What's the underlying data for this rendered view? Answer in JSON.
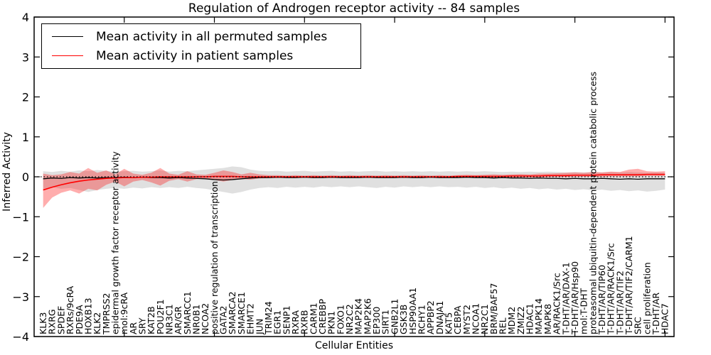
{
  "title": "Regulation of Androgen receptor activity -- 84 samples",
  "colors": {
    "permuted_line": "#000000",
    "patient_line": "#ff0000",
    "permuted_band": "#999999",
    "patient_band": "#ff0000",
    "background": "#ffffff"
  },
  "chart_data": {
    "type": "line",
    "title": "Regulation of Androgen receptor activity -- 84 samples",
    "xlabel": "Cellular Entities",
    "ylabel": "Inferred Activity",
    "ylim": [
      -4,
      4
    ],
    "yticks": [
      -4,
      -3,
      -2,
      -1,
      0,
      1,
      2,
      3,
      4
    ],
    "xticks": [
      10,
      20,
      30,
      40,
      50,
      60,
      70
    ],
    "grid": false,
    "zero_line": true,
    "legend_position": "upper left",
    "categories": [
      "KLK3",
      "RXRG",
      "SPDEF",
      "RXRs/9cRA",
      "PDE9A",
      "HOXB13",
      "KLK2",
      "TMPRSS2",
      "epidermal growth factor receptor activity",
      "mol:9cRA",
      "AR",
      "SRY",
      "KAT2B",
      "POU2F1",
      "NR3C1",
      "AR/GR",
      "SMARCC1",
      "NR0B1",
      "NCOA2",
      "positive regulation of transcription",
      "GATA2",
      "SMARCA2",
      "SMARCE1",
      "EHMT2",
      "JUN",
      "TRIM24",
      "EGR1",
      "SENP1",
      "RXRA",
      "RXRB",
      "CARM1",
      "CREBBP",
      "PKN1",
      "FOXO1",
      "NR2C2",
      "MAP2K4",
      "MAP2K6",
      "EP300",
      "SIRT1",
      "GNB2L1",
      "GSK3B",
      "HSP90AA1",
      "RCHY1",
      "APPBP2",
      "DNAJA1",
      "KAT5",
      "CEBPA",
      "MYST2",
      "NCOA1",
      "NR2C1",
      "BRM/BAF57",
      "REL",
      "MDM2",
      "ZMIZ2",
      "HDAC1",
      "MAPK14",
      "MAPK8",
      "AR/RACK1/Src",
      "T-DHT/AR/DAX-1",
      "T-DHT/AR/Hsp90",
      "mol:T-DHT",
      "proteasomal ubiquitin-dependent protein catabolic process",
      "T-DHT/AR/TIP60",
      "T-DHT/AR/RACK1/Src",
      "T-DHT/AR/TIF2",
      "T-DHT/AR/TIF2/CARM1",
      "SRC",
      "cell proliferation",
      "T-DHT/AR",
      "HDAC7"
    ],
    "series": [
      {
        "name": "Mean activity in all permuted samples",
        "name_id": "permuted-mean",
        "color": "#000000",
        "width": 1.3,
        "values": [
          -0.05,
          -0.03,
          -0.04,
          -0.02,
          -0.03,
          -0.02,
          -0.03,
          -0.02,
          -0.02,
          -0.01,
          -0.02,
          -0.01,
          -0.02,
          -0.02,
          -0.03,
          -0.02,
          -0.03,
          -0.04,
          -0.05,
          -0.07,
          -0.08,
          -0.07,
          -0.05,
          -0.03,
          -0.02,
          -0.02,
          -0.01,
          -0.02,
          -0.02,
          -0.01,
          -0.02,
          -0.02,
          -0.01,
          -0.02,
          -0.02,
          -0.02,
          -0.01,
          -0.02,
          -0.02,
          -0.02,
          -0.01,
          -0.02,
          -0.02,
          -0.01,
          -0.02,
          -0.02,
          -0.02,
          -0.01,
          -0.02,
          -0.02,
          -0.03,
          -0.02,
          -0.03,
          -0.03,
          -0.04,
          -0.03,
          -0.04,
          -0.04,
          -0.05,
          -0.04,
          -0.05,
          -0.05,
          -0.04,
          -0.05,
          -0.06,
          -0.05,
          -0.06,
          -0.05,
          -0.05,
          -0.05
        ]
      },
      {
        "name": "Mean activity in patient samples",
        "name_id": "patient-mean",
        "color": "#ff0000",
        "width": 1.6,
        "values": [
          -0.33,
          -0.26,
          -0.2,
          -0.15,
          -0.11,
          -0.08,
          -0.06,
          -0.04,
          -0.03,
          -0.02,
          -0.02,
          -0.01,
          -0.01,
          0,
          0,
          0,
          0,
          0,
          0,
          0.01,
          0.01,
          0.01,
          0,
          0,
          0,
          0,
          0,
          0,
          0,
          0,
          0,
          0,
          0,
          0,
          0,
          0,
          0,
          0,
          0,
          0,
          0,
          0,
          0,
          0,
          0,
          0,
          0.01,
          0.01,
          0.01,
          0.01,
          0.01,
          0.01,
          0.02,
          0.02,
          0.02,
          0.02,
          0.03,
          0.03,
          0.03,
          0.04,
          0.04,
          0.04,
          0.05,
          0.05,
          0.05,
          0.05,
          0.05,
          0.06,
          0.06,
          0.06
        ]
      }
    ],
    "bands": [
      {
        "name_id": "permuted-std",
        "color": "#999999",
        "opacity": 0.3,
        "upper": [
          0.14,
          0.12,
          0.15,
          0.13,
          0.16,
          0.14,
          0.17,
          0.15,
          0.13,
          0.14,
          0.15,
          0.13,
          0.14,
          0.16,
          0.13,
          0.15,
          0.14,
          0.16,
          0.18,
          0.2,
          0.22,
          0.26,
          0.24,
          0.18,
          0.15,
          0.14,
          0.15,
          0.13,
          0.14,
          0.15,
          0.13,
          0.14,
          0.15,
          0.13,
          0.14,
          0.13,
          0.14,
          0.15,
          0.13,
          0.14,
          0.13,
          0.14,
          0.13,
          0.14,
          0.13,
          0.14,
          0.13,
          0.14,
          0.13,
          0.14,
          0.13,
          0.12,
          0.13,
          0.12,
          0.13,
          0.12,
          0.13,
          0.12,
          0.11,
          0.12,
          0.11,
          0.12,
          0.11,
          0.12,
          0.11,
          0.12,
          0.11,
          0.1,
          0.11,
          0.1
        ],
        "lower": [
          -0.3,
          -0.26,
          -0.3,
          -0.28,
          -0.33,
          -0.38,
          -0.33,
          -0.3,
          -0.28,
          -0.3,
          -0.27,
          -0.29,
          -0.26,
          -0.28,
          -0.26,
          -0.28,
          -0.25,
          -0.28,
          -0.3,
          -0.34,
          -0.38,
          -0.42,
          -0.38,
          -0.32,
          -0.28,
          -0.26,
          -0.28,
          -0.25,
          -0.27,
          -0.25,
          -0.27,
          -0.24,
          -0.26,
          -0.24,
          -0.26,
          -0.24,
          -0.26,
          -0.28,
          -0.25,
          -0.27,
          -0.24,
          -0.26,
          -0.24,
          -0.26,
          -0.24,
          -0.26,
          -0.25,
          -0.27,
          -0.25,
          -0.28,
          -0.26,
          -0.29,
          -0.27,
          -0.3,
          -0.28,
          -0.31,
          -0.29,
          -0.32,
          -0.3,
          -0.33,
          -0.31,
          -0.34,
          -0.32,
          -0.35,
          -0.33,
          -0.36,
          -0.34,
          -0.37,
          -0.35,
          -0.32
        ]
      },
      {
        "name_id": "patient-std",
        "color": "#ff0000",
        "opacity": 0.32,
        "upper": [
          0.08,
          0.04,
          0.06,
          0.12,
          0.08,
          0.22,
          0.1,
          0.16,
          0.06,
          0.2,
          0.08,
          0.05,
          0.1,
          0.22,
          0.08,
          0.05,
          0.14,
          0.06,
          0.05,
          0.1,
          0.16,
          0.12,
          0.06,
          0.1,
          0.06,
          0.04,
          0.04,
          0.03,
          0.04,
          0.03,
          0.04,
          0.03,
          0.04,
          0.03,
          0.04,
          0.03,
          0.04,
          0.03,
          0.04,
          0.03,
          0.04,
          0.03,
          0.04,
          0.03,
          0.04,
          0.03,
          0.04,
          0.05,
          0.04,
          0.05,
          0.06,
          0.05,
          0.06,
          0.07,
          0.06,
          0.08,
          0.08,
          0.09,
          0.1,
          0.11,
          0.1,
          0.12,
          0.11,
          0.13,
          0.12,
          0.18,
          0.2,
          0.14,
          0.13,
          0.14
        ],
        "lower": [
          -0.78,
          -0.52,
          -0.4,
          -0.34,
          -0.42,
          -0.3,
          -0.34,
          -0.2,
          -0.12,
          -0.24,
          -0.12,
          -0.08,
          -0.14,
          -0.22,
          -0.1,
          -0.06,
          -0.12,
          -0.06,
          -0.05,
          -0.08,
          -0.12,
          -0.08,
          -0.05,
          -0.07,
          -0.04,
          -0.03,
          -0.03,
          -0.02,
          -0.03,
          -0.02,
          -0.03,
          -0.02,
          -0.03,
          -0.02,
          -0.03,
          -0.02,
          -0.03,
          -0.02,
          -0.03,
          -0.02,
          -0.03,
          -0.02,
          -0.03,
          -0.02,
          -0.03,
          -0.02,
          -0.02,
          -0.01,
          -0.02,
          -0.01,
          -0.02,
          -0.01,
          -0.02,
          -0.01,
          -0.02,
          -0.01,
          -0.01,
          0,
          -0.01,
          0,
          0,
          0,
          0,
          0.01,
          0.01,
          0.01,
          0.01,
          0.02,
          0.02,
          0.02
        ]
      }
    ]
  }
}
